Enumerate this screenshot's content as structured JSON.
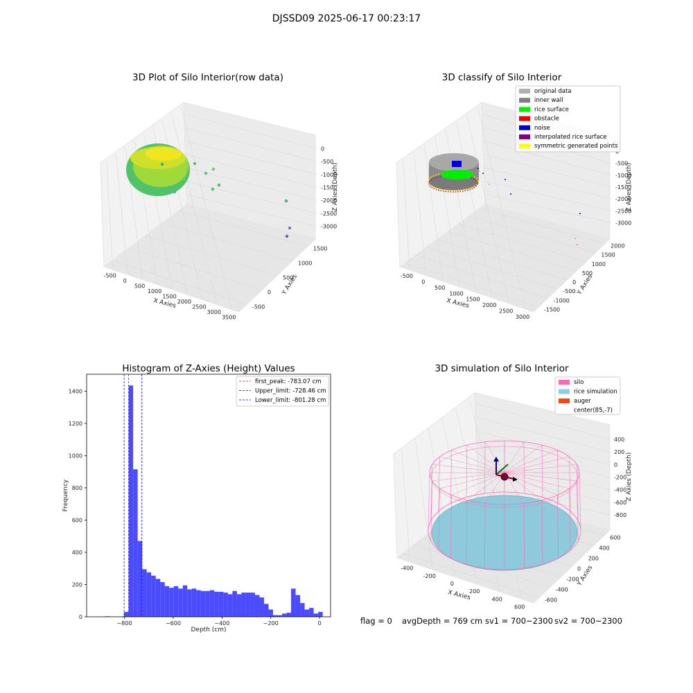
{
  "figure": {
    "suptitle": "DJSSD09 2025-06-17 00:23:17",
    "footer": {
      "flag": "flag = 0",
      "avg_depth": "avgDepth = 769 cm",
      "sv1": "sv1 = 700~2300",
      "sv2": "sv2 = 700~2300"
    }
  },
  "panels": {
    "raw": {
      "title": "3D Plot of Silo Interior(row data)",
      "xlabel": "X Axies",
      "ylabel": "Y Axies",
      "zlabel": "Z Axies (Depth)",
      "xticks": [
        "-500",
        "0",
        "500",
        "1000",
        "1500",
        "2000",
        "2500",
        "3000",
        "3500"
      ],
      "yticks": [
        "-500",
        "0",
        "500",
        "1000",
        "1500"
      ],
      "zticks": [
        "0",
        "-500",
        "-1000",
        "-1500",
        "-2000",
        "-2500",
        "-3000"
      ]
    },
    "classify": {
      "title": "3D classify of Silo Interior",
      "xlabel": "X Axies",
      "ylabel": "Y Axies",
      "zlabel": "Z Axies (Depth)",
      "xticks": [
        "-500",
        "0",
        "500",
        "1000",
        "1500",
        "2000",
        "2500",
        "3000"
      ],
      "yticks": [
        "-1500",
        "-1000",
        "-500",
        "0",
        "500",
        "1000",
        "1500",
        "2000"
      ],
      "zticks": [
        "0",
        "-500",
        "-1000",
        "-1500",
        "-2000",
        "-2500",
        "-3000"
      ],
      "ztop_partial": "00",
      "legend": [
        {
          "label": "original data",
          "color": "#b0b0b0"
        },
        {
          "label": "inner wall",
          "color": "#808080"
        },
        {
          "label": "rice surface",
          "color": "#00ee00"
        },
        {
          "label": "obstacle",
          "color": "#ee0000"
        },
        {
          "label": "noise",
          "color": "#0000dd"
        },
        {
          "label": "interpolated rice surface",
          "color": "#800080"
        },
        {
          "label": "symmetric generated points",
          "color": "#ffff00"
        }
      ]
    },
    "simulation": {
      "title": "3D simulation of Silo Interior",
      "xlabel": "X Axies",
      "ylabel": "Y Axies",
      "zlabel": "Z Axies (Depth)",
      "xticks": [
        "-400",
        "-200",
        "0",
        "200",
        "400",
        "600"
      ],
      "yticks": [
        "-600",
        "-400",
        "-200",
        "0",
        "200",
        "400",
        "600"
      ],
      "zticks": [
        "400",
        "200",
        "0",
        "-200",
        "-400",
        "-600",
        "-800"
      ],
      "legend": [
        {
          "label": "silo",
          "color": "#ff69b4"
        },
        {
          "label": "rice simulation",
          "color": "#87ceeb"
        },
        {
          "label": "auger",
          "color": "#ff4500"
        },
        {
          "label": "center(85,-7)",
          "color": ""
        }
      ]
    }
  },
  "chart_data": [
    {
      "type": "scatter",
      "title": "3D Plot of Silo Interior(row data)",
      "xlabel": "X Axies",
      "ylabel": "Y Axies",
      "zlabel": "Z Axies (Depth)",
      "xlim": [
        -700,
        3600
      ],
      "ylim": [
        -700,
        1700
      ],
      "zlim": [
        -3300,
        100
      ],
      "colormap": "viridis",
      "note_points": [
        {
          "x": 1800,
          "y": 900,
          "z": -1200
        },
        {
          "x": 2900,
          "y": 800,
          "z": -2200
        },
        {
          "x": 3300,
          "y": 1000,
          "z": -3000
        },
        {
          "x": 3300,
          "y": 900,
          "z": -3300
        }
      ]
    },
    {
      "type": "scatter",
      "title": "3D classify of Silo Interior",
      "xlabel": "X Axies",
      "ylabel": "Y Axies",
      "zlabel": "Z Axies (Depth)",
      "xlim": [
        -700,
        3200
      ],
      "ylim": [
        -1700,
        2200
      ],
      "zlim": [
        -3300,
        100
      ],
      "legend_placement": "top-right"
    },
    {
      "type": "bar",
      "title": "Histogram of Z-Axies (Height) Values",
      "xlabel": "Depth (cm)",
      "ylabel": "Frequency",
      "xlim": [
        -955,
        45
      ],
      "ylim": [
        0,
        1505
      ],
      "xticks": [
        -800,
        -600,
        -400,
        -200,
        0
      ],
      "yticks": [
        0,
        200,
        400,
        600,
        800,
        1000,
        1200,
        1400
      ],
      "bin_width": 18.5,
      "bins": [
        {
          "x0": -880,
          "count": 3
        },
        {
          "x0": -810,
          "count": 3
        },
        {
          "x0": -801.3,
          "count": 30
        },
        {
          "x0": -782.8,
          "count": 1435
        },
        {
          "x0": -764.3,
          "count": 915
        },
        {
          "x0": -745.8,
          "count": 470
        },
        {
          "x0": -727.3,
          "count": 295
        },
        {
          "x0": -708.8,
          "count": 275
        },
        {
          "x0": -690.3,
          "count": 255
        },
        {
          "x0": -671.8,
          "count": 235
        },
        {
          "x0": -653.3,
          "count": 215
        },
        {
          "x0": -634.8,
          "count": 190
        },
        {
          "x0": -616.3,
          "count": 180
        },
        {
          "x0": -597.8,
          "count": 190
        },
        {
          "x0": -579.3,
          "count": 175
        },
        {
          "x0": -560.8,
          "count": 195
        },
        {
          "x0": -542.3,
          "count": 170
        },
        {
          "x0": -523.8,
          "count": 175
        },
        {
          "x0": -505.3,
          "count": 165
        },
        {
          "x0": -486.8,
          "count": 160
        },
        {
          "x0": -468.3,
          "count": 160
        },
        {
          "x0": -449.8,
          "count": 165
        },
        {
          "x0": -431.3,
          "count": 155
        },
        {
          "x0": -412.8,
          "count": 155
        },
        {
          "x0": -394.3,
          "count": 150
        },
        {
          "x0": -375.8,
          "count": 140
        },
        {
          "x0": -357.3,
          "count": 160
        },
        {
          "x0": -338.8,
          "count": 140
        },
        {
          "x0": -320.3,
          "count": 150
        },
        {
          "x0": -301.8,
          "count": 150
        },
        {
          "x0": -283.3,
          "count": 150
        },
        {
          "x0": -264.8,
          "count": 135
        },
        {
          "x0": -246.3,
          "count": 120
        },
        {
          "x0": -227.8,
          "count": 80
        },
        {
          "x0": -209.3,
          "count": 45
        },
        {
          "x0": -190.8,
          "count": 10
        },
        {
          "x0": -172.3,
          "count": 10
        },
        {
          "x0": -153.8,
          "count": 20
        },
        {
          "x0": -135.3,
          "count": 25
        },
        {
          "x0": -116.8,
          "count": 175
        },
        {
          "x0": -98.3,
          "count": 135
        },
        {
          "x0": -79.8,
          "count": 85
        },
        {
          "x0": -61.3,
          "count": 45
        },
        {
          "x0": -42.8,
          "count": 55
        },
        {
          "x0": -24.3,
          "count": 20
        },
        {
          "x0": -5.8,
          "count": 30
        }
      ],
      "bar_color": "#4b4bff",
      "vlines": [
        {
          "label": "first_peak: -783.07 cm",
          "x": -783.07,
          "color": "#ff0000"
        },
        {
          "label": "Upper_limit: -728.46 cm",
          "x": -728.46,
          "color": "#0000ff"
        },
        {
          "label": "Lower_limit: -801.28 cm",
          "x": -801.28,
          "color": "#0000ff"
        }
      ],
      "legend_placement": "top-right"
    },
    {
      "type": "scatter",
      "title": "3D simulation of Silo Interior",
      "xlabel": "X Axies",
      "ylabel": "Y Axies",
      "zlabel": "Z Axies (Depth)",
      "xlim": [
        -500,
        700
      ],
      "ylim": [
        -700,
        700
      ],
      "zlim": [
        -900,
        480
      ],
      "silo": {
        "cx": 85,
        "cy": -7,
        "radius": 550,
        "z_top": 0,
        "z_bottom": -780
      },
      "rice_surface_depth": -769,
      "legend_placement": "top-right"
    }
  ]
}
